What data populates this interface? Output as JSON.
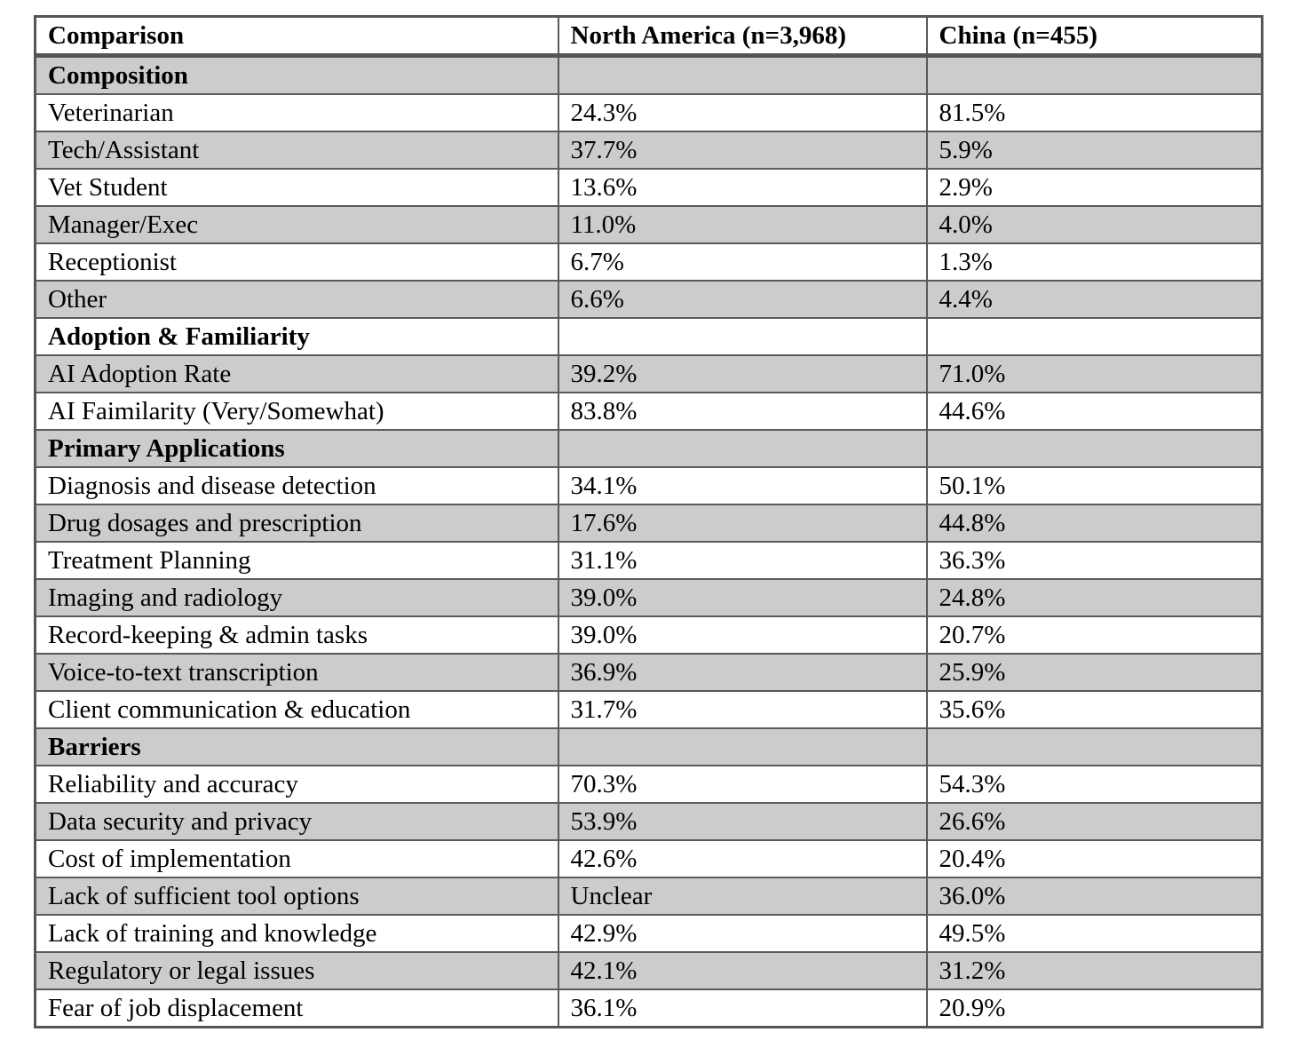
{
  "colors": {
    "stripe_gray": "#cccccc",
    "row_white": "#ffffff",
    "border": "#5a5a5a",
    "outer_border": "#555555",
    "text": "#000000"
  },
  "table": {
    "columns": [
      {
        "label": "Comparison"
      },
      {
        "label": "North America (n=3,968)"
      },
      {
        "label": "China (n=455)"
      }
    ],
    "rows": [
      {
        "type": "section",
        "label": "Composition",
        "na": "",
        "china": ""
      },
      {
        "type": "data",
        "label": "Veterinarian",
        "na": "24.3%",
        "china": "81.5%"
      },
      {
        "type": "data",
        "label": "Tech/Assistant",
        "na": "37.7%",
        "china": "5.9%"
      },
      {
        "type": "data",
        "label": "Vet Student",
        "na": "13.6%",
        "china": "2.9%"
      },
      {
        "type": "data",
        "label": "Manager/Exec",
        "na": "11.0%",
        "china": "4.0%"
      },
      {
        "type": "data",
        "label": "Receptionist",
        "na": "6.7%",
        "china": "1.3%"
      },
      {
        "type": "data",
        "label": "Other",
        "na": "6.6%",
        "china": "4.4%"
      },
      {
        "type": "section",
        "label": "Adoption & Familiarity",
        "na": "",
        "china": ""
      },
      {
        "type": "data",
        "label": "AI Adoption Rate",
        "na": "39.2%",
        "china": "71.0%"
      },
      {
        "type": "data",
        "label": "AI Faimilarity (Very/Somewhat)",
        "na": "83.8%",
        "china": "44.6%"
      },
      {
        "type": "section",
        "label": "Primary Applications",
        "na": "",
        "china": ""
      },
      {
        "type": "data",
        "label": "Diagnosis and disease detection",
        "na": "34.1%",
        "china": "50.1%"
      },
      {
        "type": "data",
        "label": "Drug dosages and prescription",
        "na": "17.6%",
        "china": "44.8%"
      },
      {
        "type": "data",
        "label": "Treatment Planning",
        "na": "31.1%",
        "china": "36.3%"
      },
      {
        "type": "data",
        "label": "Imaging and radiology",
        "na": "39.0%",
        "china": "24.8%"
      },
      {
        "type": "data",
        "label": "Record-keeping & admin tasks",
        "na": "39.0%",
        "china": "20.7%"
      },
      {
        "type": "data",
        "label": "Voice-to-text transcription",
        "na": "36.9%",
        "china": "25.9%"
      },
      {
        "type": "data",
        "label": "Client communication & education",
        "na": "31.7%",
        "china": "35.6%"
      },
      {
        "type": "section",
        "label": "Barriers",
        "na": "",
        "china": ""
      },
      {
        "type": "data",
        "label": "Reliability and accuracy",
        "na": "70.3%",
        "china": "54.3%"
      },
      {
        "type": "data",
        "label": "Data security and privacy",
        "na": "53.9%",
        "china": "26.6%"
      },
      {
        "type": "data",
        "label": "Cost of implementation",
        "na": "42.6%",
        "china": "20.4%"
      },
      {
        "type": "data",
        "label": "Lack of sufficient tool options",
        "na": "Unclear",
        "china": "36.0%"
      },
      {
        "type": "data",
        "label": "Lack of training and knowledge",
        "na": "42.9%",
        "china": "49.5%"
      },
      {
        "type": "data",
        "label": "Regulatory or legal issues",
        "na": "42.1%",
        "china": "31.2%"
      },
      {
        "type": "data",
        "label": "Fear of job displacement",
        "na": "36.1%",
        "china": "20.9%"
      }
    ]
  }
}
